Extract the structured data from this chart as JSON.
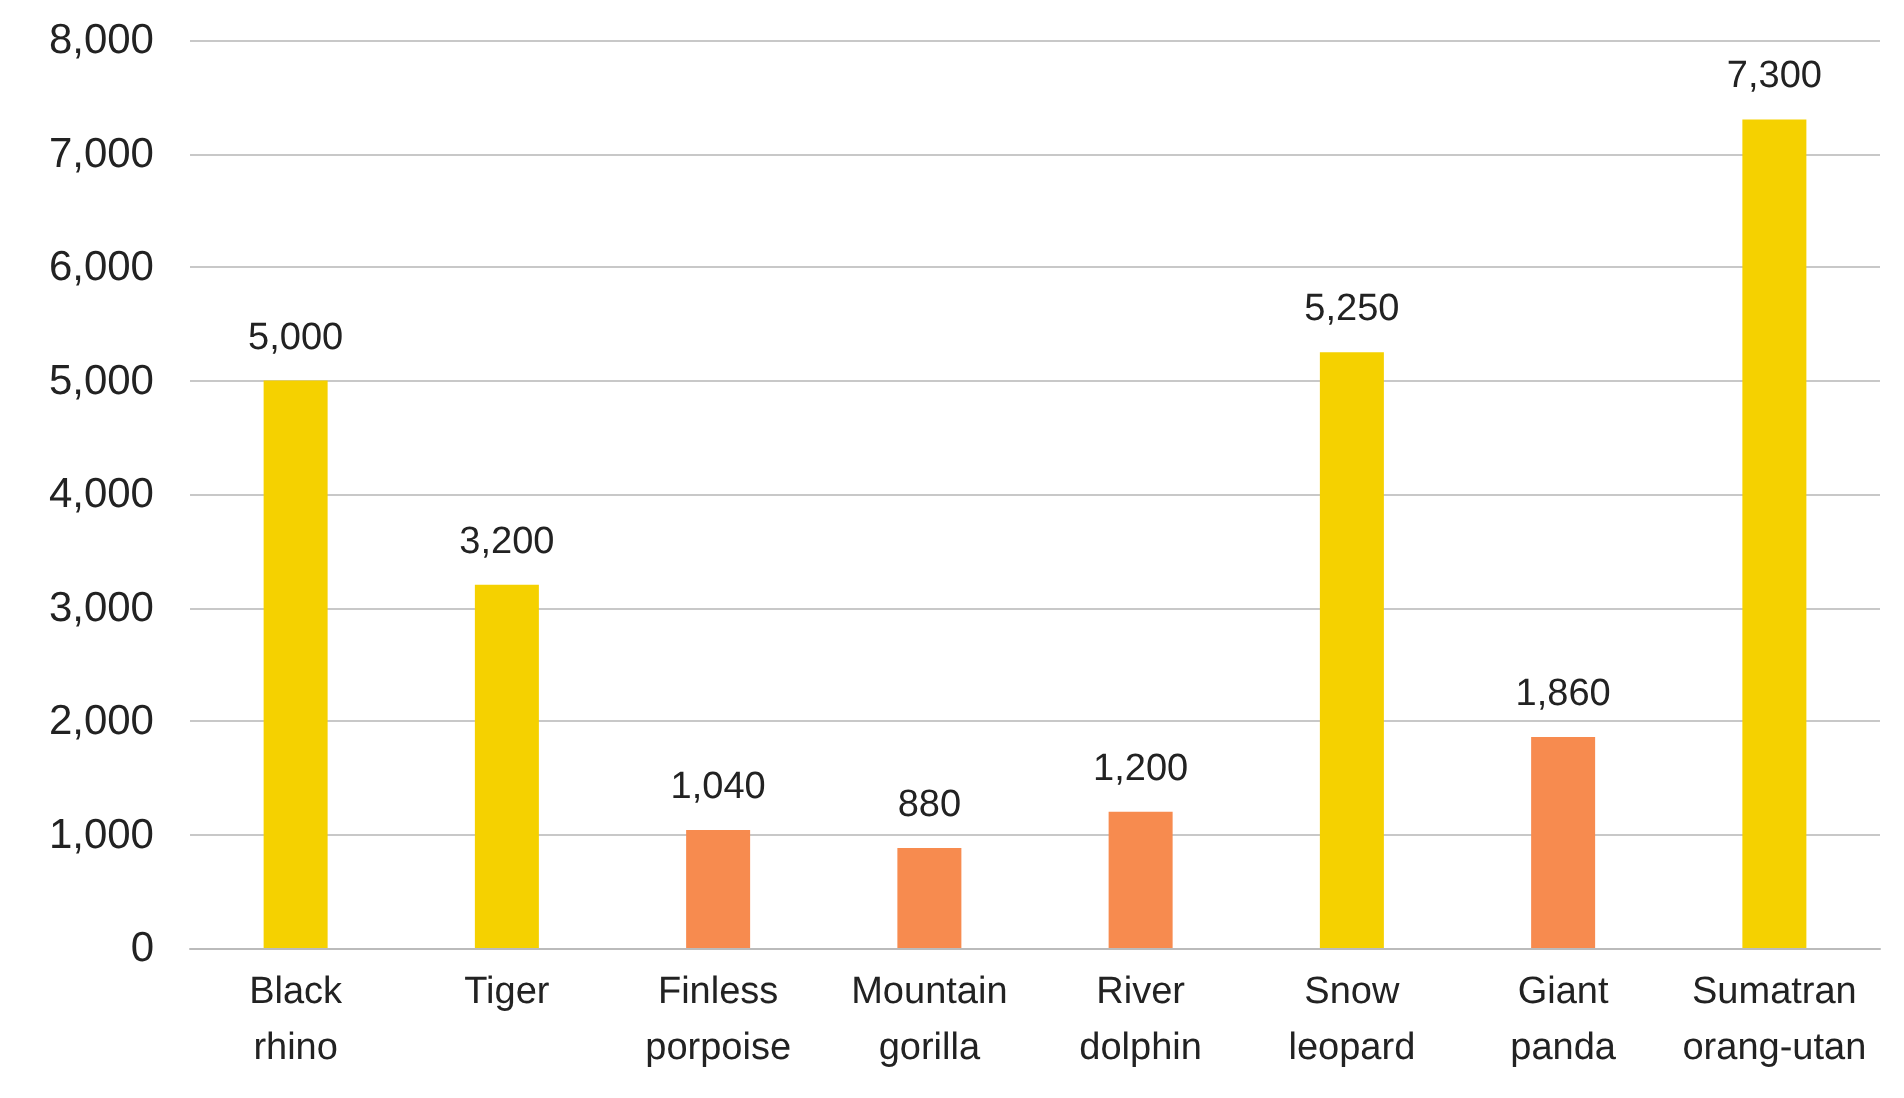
{
  "chart_data": {
    "type": "bar",
    "categories": [
      "Black rhino",
      "Tiger",
      "Finless porpoise",
      "Mountain gorilla",
      "River dolphin",
      "Snow leopard",
      "Giant panda",
      "Sumatran orang-utan"
    ],
    "values": [
      5000,
      3200,
      1040,
      880,
      1200,
      5250,
      1860,
      7300
    ],
    "value_labels": [
      "5,000",
      "3,200",
      "1,040",
      "880",
      "1,200",
      "5,250",
      "1,860",
      "7,300"
    ],
    "colors": [
      "#f5d100",
      "#f5d100",
      "#f78b4f",
      "#f78b4f",
      "#f78b4f",
      "#f5d100",
      "#f78b4f",
      "#f5d100"
    ],
    "ylim": [
      0,
      8000
    ],
    "yticks": [
      0,
      {
        "value": 1000,
        "label": "1,000"
      },
      {
        "value": 2000,
        "label": "2,000"
      },
      {
        "value": 3000,
        "label": "3,000"
      },
      {
        "value": 4000,
        "label": "4,000"
      },
      {
        "value": 5000,
        "label": "5,000"
      },
      {
        "value": 6000,
        "label": "6,000"
      },
      {
        "value": 7000,
        "label": "7,000"
      },
      {
        "value": 8000,
        "label": "8,000"
      }
    ],
    "grid": "y"
  }
}
